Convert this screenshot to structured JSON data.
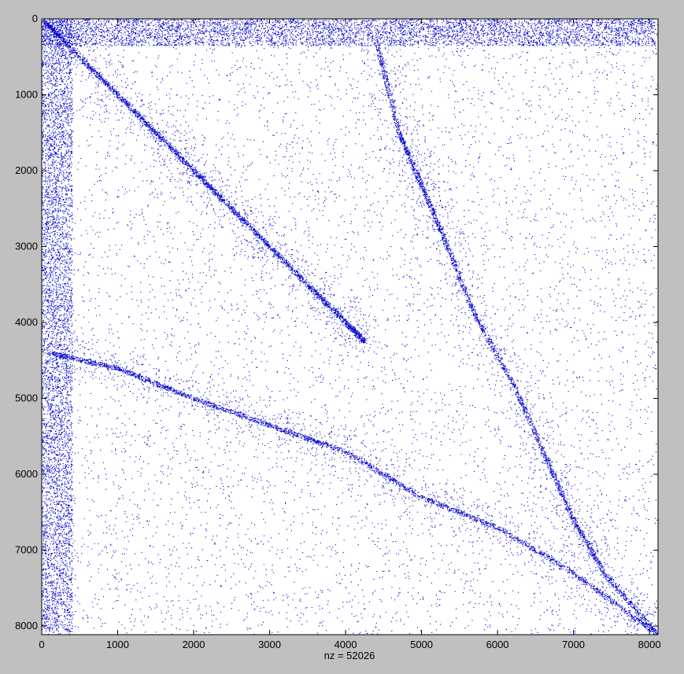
{
  "figure": {
    "background": "#c0c0c0",
    "axes_background": "#ffffff",
    "marker_color": "#0000cc"
  },
  "chart_data": {
    "type": "scatter",
    "title": "",
    "xlabel": "nz = 52026",
    "ylabel": "",
    "nz": 52026,
    "xlim": [
      0,
      8113
    ],
    "ylim": [
      0,
      8113
    ],
    "y_reversed": true,
    "xticks": [
      0,
      1000,
      2000,
      3000,
      4000,
      5000,
      6000,
      7000,
      8000
    ],
    "yticks": [
      0,
      1000,
      2000,
      3000,
      4000,
      5000,
      6000,
      7000,
      8000
    ],
    "grid": false,
    "marker": ".",
    "series": [
      {
        "description": "diagonal band (upper-left)",
        "points": [
          [
            0,
            0
          ],
          [
            500,
            500
          ],
          [
            1000,
            1000
          ],
          [
            1500,
            1500
          ],
          [
            2000,
            2000
          ],
          [
            2500,
            2500
          ],
          [
            3000,
            3000
          ],
          [
            3500,
            3500
          ],
          [
            4000,
            4000
          ],
          [
            4250,
            4250
          ]
        ]
      },
      {
        "description": "steep band",
        "points": [
          [
            4400,
            300
          ],
          [
            4700,
            1500
          ],
          [
            5000,
            2200
          ],
          [
            5300,
            2900
          ],
          [
            5700,
            3900
          ],
          [
            6200,
            4800
          ],
          [
            6600,
            5700
          ],
          [
            7000,
            6600
          ],
          [
            7400,
            7300
          ],
          [
            8113,
            8113
          ]
        ]
      },
      {
        "description": "shallow band",
        "points": [
          [
            100,
            4400
          ],
          [
            1000,
            4600
          ],
          [
            2000,
            5000
          ],
          [
            3000,
            5350
          ],
          [
            4000,
            5700
          ],
          [
            5000,
            6300
          ],
          [
            6000,
            6700
          ],
          [
            7000,
            7300
          ],
          [
            8113,
            8113
          ]
        ]
      }
    ],
    "dense_strips": [
      {
        "axis": "x",
        "range": [
          0,
          400
        ]
      },
      {
        "axis": "y",
        "range": [
          0,
          350
        ]
      }
    ],
    "scatter_density": 0.0009
  }
}
